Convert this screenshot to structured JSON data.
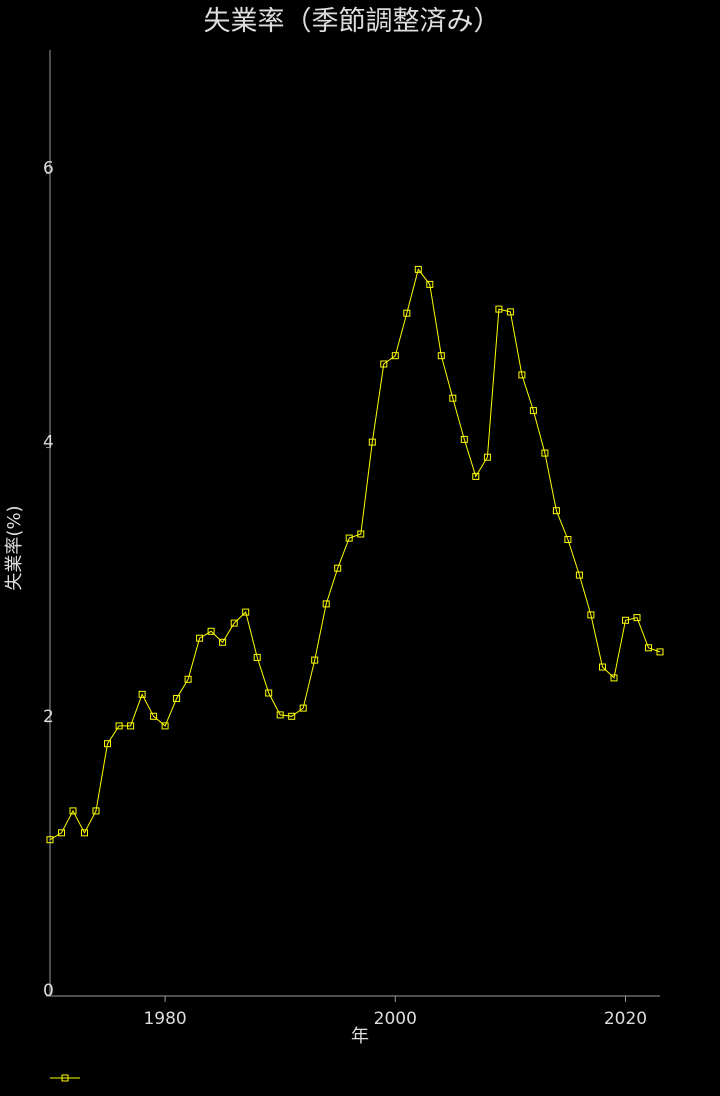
{
  "colors": {
    "background": "#000000",
    "series": "#ffff00",
    "axis": "#9a9a9a",
    "text": "#dddddd"
  },
  "chart_data": {
    "type": "line",
    "title": "失業率（季節調整済み）",
    "xlabel": "年",
    "ylabel": "失業率(%)",
    "xlim": [
      1970,
      2023
    ],
    "ylim": [
      0,
      6.9
    ],
    "xticks": [
      1980,
      2000,
      2020
    ],
    "yticks": [
      0,
      2,
      4,
      6
    ],
    "grid": false,
    "legend": "bottom-left",
    "series": [
      {
        "marker": "square",
        "x": [
          1970,
          1971,
          1972,
          1973,
          1974,
          1975,
          1976,
          1977,
          1978,
          1979,
          1980,
          1981,
          1982,
          1983,
          1984,
          1985,
          1986,
          1987,
          1988,
          1989,
          1990,
          1991,
          1992,
          1993,
          1994,
          1995,
          1996,
          1997,
          1998,
          1999,
          2000,
          2001,
          2002,
          2003,
          2004,
          2005,
          2006,
          2007,
          2008,
          2009,
          2010,
          2011,
          2012,
          2013,
          2014,
          2015,
          2016,
          2017,
          2018,
          2019,
          2020,
          2021,
          2022,
          2023
        ],
        "y": [
          1.14,
          1.19,
          1.35,
          1.19,
          1.35,
          1.84,
          1.97,
          1.97,
          2.2,
          2.04,
          1.97,
          2.17,
          2.31,
          2.61,
          2.66,
          2.58,
          2.72,
          2.8,
          2.47,
          2.21,
          2.05,
          2.04,
          2.1,
          2.45,
          2.86,
          3.12,
          3.34,
          3.37,
          4.04,
          4.61,
          4.67,
          4.98,
          5.3,
          5.19,
          4.67,
          4.36,
          4.06,
          3.79,
          3.93,
          5.01,
          4.99,
          4.53,
          4.27,
          3.96,
          3.54,
          3.33,
          3.07,
          2.78,
          2.4,
          2.32,
          2.74,
          2.76,
          2.54,
          2.51
        ]
      }
    ]
  }
}
